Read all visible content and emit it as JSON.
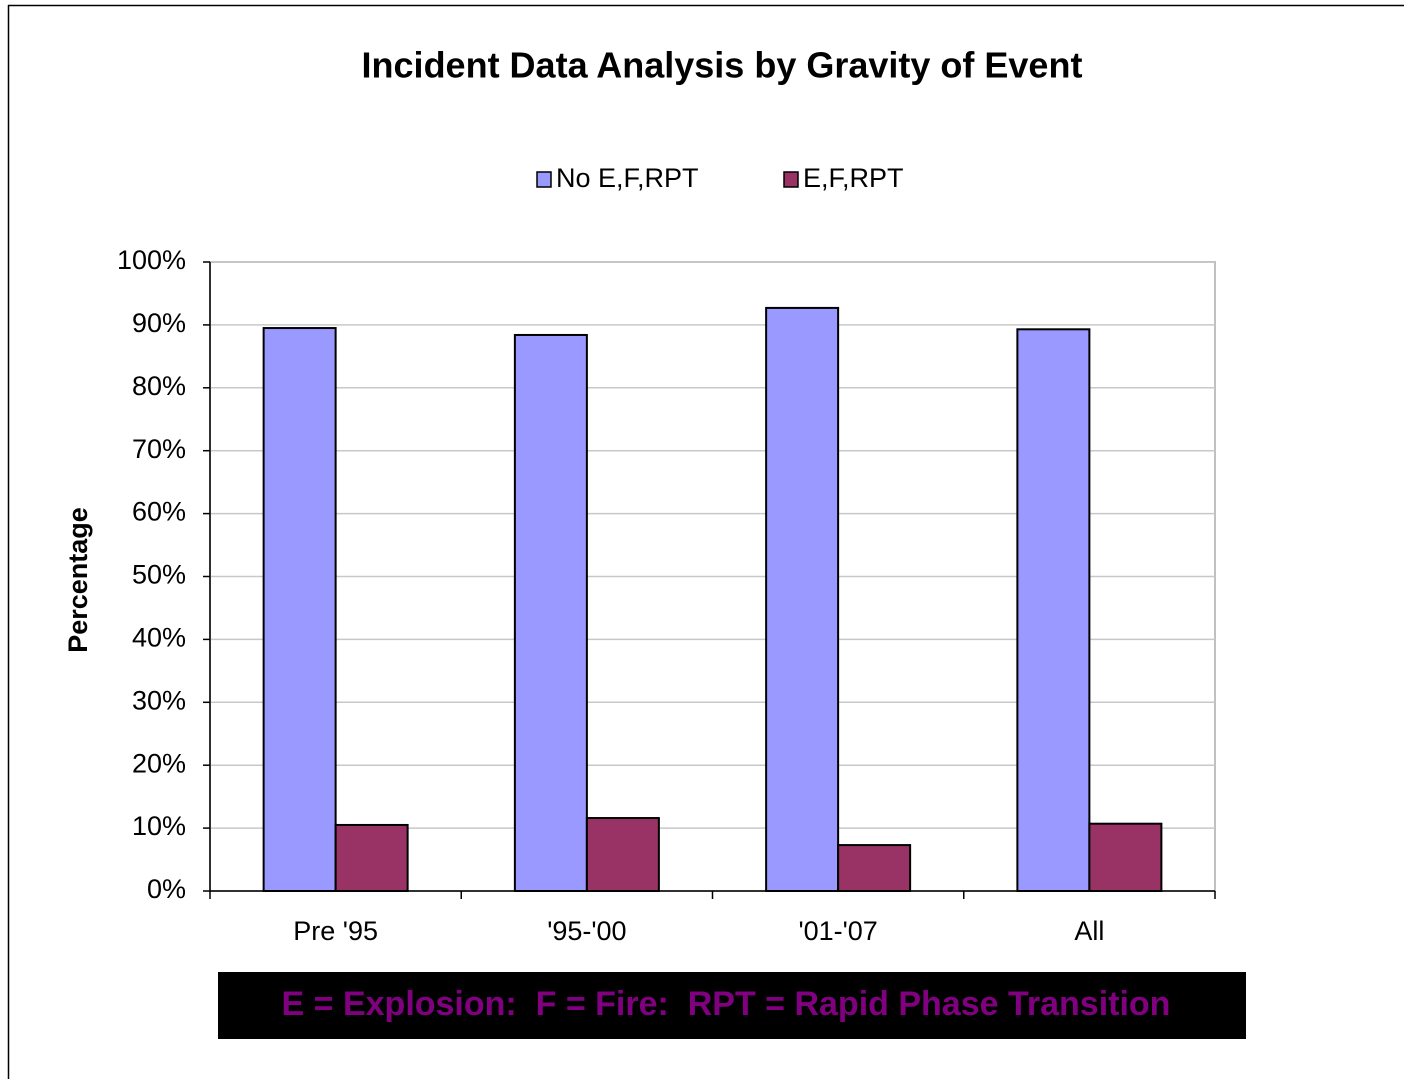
{
  "chart_data": {
    "type": "bar",
    "title": "Incident Data Analysis by Gravity of Event",
    "y_label": "Percentage",
    "categories": [
      "Pre '95",
      "'95-'00",
      "'01-'07",
      "All"
    ],
    "series": [
      {
        "name": "No E,F,RPT",
        "color": "#9999ff",
        "values": [
          89.5,
          88.4,
          92.7,
          89.3
        ]
      },
      {
        "name": "E,F,RPT",
        "color": "#993366",
        "values": [
          10.5,
          11.6,
          7.3,
          10.7
        ]
      }
    ],
    "ylim": [
      0,
      100
    ],
    "yticks": [
      {
        "value": 0,
        "label": "0%"
      },
      {
        "value": 10,
        "label": "10%"
      },
      {
        "value": 20,
        "label": "20%"
      },
      {
        "value": 30,
        "label": "30%"
      },
      {
        "value": 40,
        "label": "40%"
      },
      {
        "value": 50,
        "label": "50%"
      },
      {
        "value": 60,
        "label": "60%"
      },
      {
        "value": 70,
        "label": "70%"
      },
      {
        "value": 80,
        "label": "80%"
      },
      {
        "value": 90,
        "label": "90%"
      },
      {
        "value": 100,
        "label": "100%"
      }
    ],
    "grid": true,
    "legend": "top",
    "annotation": "E = Explosion:  F = Fire:  RPT = Rapid Phase Transition"
  }
}
